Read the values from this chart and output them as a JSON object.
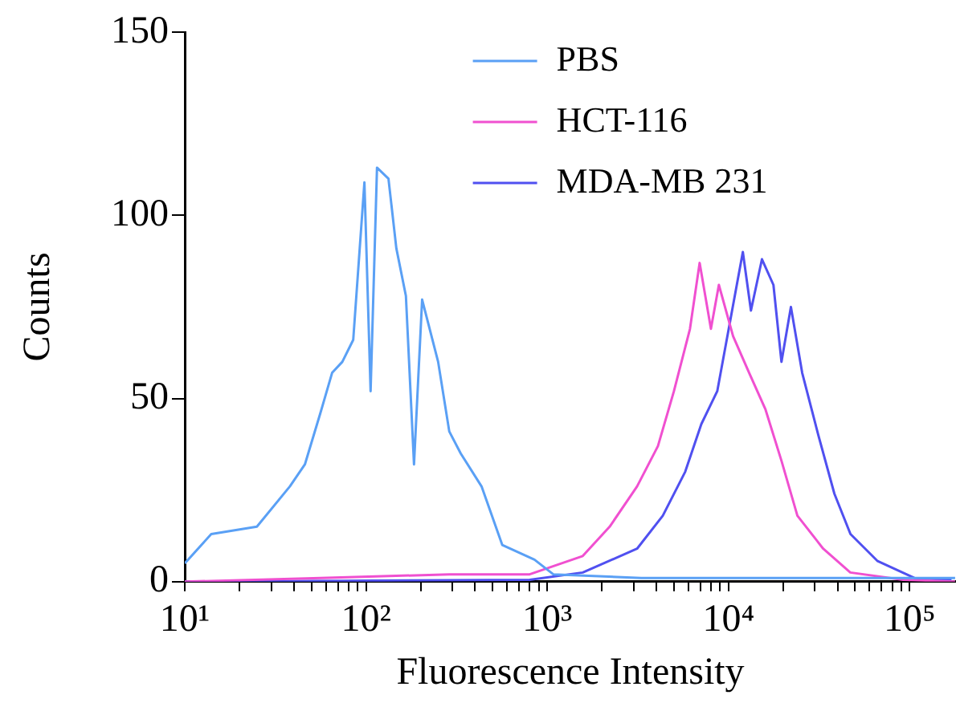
{
  "chart_data": {
    "type": "line",
    "xlabel": "Fluorescence Intensity",
    "ylabel": "Counts",
    "log": "x",
    "xlim": [
      10,
      180000
    ],
    "ylim": [
      0,
      150
    ],
    "xticks": [
      {
        "value": 10,
        "label": "10¹"
      },
      {
        "value": 20,
        "label": null
      },
      {
        "value": 30,
        "label": null
      },
      {
        "value": 40,
        "label": null
      },
      {
        "value": 50,
        "label": null
      },
      {
        "value": 60,
        "label": null
      },
      {
        "value": 70,
        "label": null
      },
      {
        "value": 80,
        "label": null
      },
      {
        "value": 90,
        "label": null
      },
      {
        "value": 100,
        "label": "10²"
      },
      {
        "value": 200,
        "label": null
      },
      {
        "value": 300,
        "label": null
      },
      {
        "value": 400,
        "label": null
      },
      {
        "value": 500,
        "label": null
      },
      {
        "value": 600,
        "label": null
      },
      {
        "value": 700,
        "label": null
      },
      {
        "value": 800,
        "label": null
      },
      {
        "value": 900,
        "label": null
      },
      {
        "value": 1000,
        "label": "10³"
      },
      {
        "value": 2000,
        "label": null
      },
      {
        "value": 3000,
        "label": null
      },
      {
        "value": 4000,
        "label": null
      },
      {
        "value": 5000,
        "label": null
      },
      {
        "value": 6000,
        "label": null
      },
      {
        "value": 7000,
        "label": null
      },
      {
        "value": 8000,
        "label": null
      },
      {
        "value": 9000,
        "label": null
      },
      {
        "value": 10000,
        "label": "10⁴"
      },
      {
        "value": 20000,
        "label": null
      },
      {
        "value": 30000,
        "label": null
      },
      {
        "value": 40000,
        "label": null
      },
      {
        "value": 50000,
        "label": null
      },
      {
        "value": 60000,
        "label": null
      },
      {
        "value": 70000,
        "label": null
      },
      {
        "value": 80000,
        "label": null
      },
      {
        "value": 90000,
        "label": null
      },
      {
        "value": 100000,
        "label": "10⁵"
      }
    ],
    "yticks": [
      0,
      50,
      100,
      150
    ],
    "grid": false,
    "legend": "top",
    "marker": "none",
    "line_style": "solid",
    "series": [
      {
        "name": "PBS",
        "color": "#5aa0f5",
        "x": [
          10,
          14,
          25,
          38,
          46,
          56,
          65,
          74,
          85,
          98,
          106,
          115,
          133,
          147,
          166,
          184,
          204,
          250,
          288,
          333,
          434,
          565,
          850,
          1080,
          3300,
          11200,
          38000,
          178000
        ],
        "values": [
          5,
          13,
          15,
          26,
          32,
          46,
          57,
          60,
          66,
          109,
          52,
          113,
          110,
          91,
          78,
          32,
          77,
          60,
          41,
          35,
          26,
          10,
          6,
          2,
          1,
          1,
          1,
          1
        ]
      },
      {
        "name": "HCT-116",
        "color": "#f050d0",
        "x": [
          10,
          56,
          288,
          800,
          1570,
          2210,
          3130,
          4080,
          5000,
          6130,
          6930,
          8000,
          8850,
          10600,
          13000,
          16000,
          19600,
          24000,
          33300,
          47000,
          92000,
          178000
        ],
        "values": [
          0,
          1,
          2,
          2,
          7,
          15,
          26,
          37,
          52,
          69,
          87,
          69,
          81,
          67,
          57,
          47,
          33,
          18,
          9,
          2.5,
          0.5,
          0
        ]
      },
      {
        "name": "MDA-MB 231",
        "color": "#5050f0",
        "x": [
          10,
          800,
          1570,
          3130,
          4340,
          5770,
          7080,
          8670,
          10200,
          12000,
          13300,
          15300,
          17700,
          19600,
          22100,
          25500,
          31300,
          38400,
          47100,
          66500,
          106000,
          170000
        ],
        "values": [
          0,
          0.5,
          2.5,
          9,
          18,
          30,
          43,
          52,
          71,
          90,
          74,
          88,
          81,
          60,
          75,
          57,
          40,
          24,
          13,
          5.6,
          1,
          0.5
        ]
      }
    ]
  }
}
